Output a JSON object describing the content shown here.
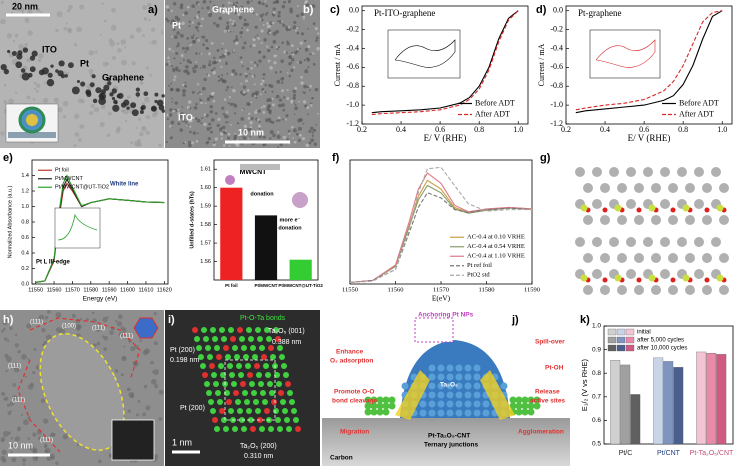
{
  "panels": {
    "a": {
      "label": "a)",
      "scale_bar": "20 nm",
      "annotations": [
        "ITO",
        "Pt",
        "Graphene"
      ]
    },
    "b": {
      "label": "b)",
      "scale_bar": "10 nm",
      "annotations": [
        "Graphene",
        "Pt",
        "ITO"
      ]
    },
    "c": {
      "label": "c)",
      "chart": {
        "type": "line",
        "title": "Pt-ITO-graphene",
        "x_label": "E/ V (RHE)",
        "y_label": "Current / mA",
        "x": [
          0.25,
          0.3,
          0.4,
          0.5,
          0.6,
          0.7,
          0.75,
          0.8,
          0.85,
          0.9,
          0.95,
          1.0
        ],
        "series": [
          {
            "name": "Before ADT",
            "color": "#000000",
            "dash": false,
            "values": [
              -1.08,
              -1.07,
              -1.06,
              -1.05,
              -1.03,
              -0.98,
              -0.92,
              -0.8,
              -0.6,
              -0.3,
              -0.08,
              0
            ]
          },
          {
            "name": "After ADT",
            "color": "#d62728",
            "dash": true,
            "values": [
              -1.1,
              -1.09,
              -1.08,
              -1.07,
              -1.05,
              -1.0,
              -0.94,
              -0.83,
              -0.63,
              -0.33,
              -0.1,
              0
            ]
          }
        ],
        "xlim": [
          0.2,
          1.05
        ],
        "xticks": [
          0.2,
          0.4,
          0.6,
          0.8,
          {
            "value": 1,
            "label": "1.0"
          }
        ],
        "ylim": [
          -1.2,
          0.05
        ],
        "yticks": [
          {
            "value": 0,
            "label": "0.0"
          },
          -0.2,
          -0.4,
          -0.6,
          -0.8,
          {
            "value": -1,
            "label": "-1.0"
          },
          -1.2
        ],
        "legend": "lower right"
      }
    },
    "d": {
      "label": "d)",
      "chart": {
        "type": "line",
        "title": "Pt-graphene",
        "x_label": "E/ V (RHE)",
        "y_label": "Current / mA",
        "x": [
          0.25,
          0.3,
          0.4,
          0.5,
          0.6,
          0.7,
          0.75,
          0.8,
          0.85,
          0.9,
          0.95,
          1.0
        ],
        "series": [
          {
            "name": "Before ADT",
            "color": "#000000",
            "dash": false,
            "values": [
              -1.08,
              -1.06,
              -1.04,
              -1.02,
              -1.0,
              -0.95,
              -0.9,
              -0.78,
              -0.58,
              -0.3,
              -0.06,
              0
            ]
          },
          {
            "name": "After ADT",
            "color": "#d62728",
            "dash": true,
            "values": [
              -1.05,
              -1.03,
              -1.0,
              -0.98,
              -0.94,
              -0.85,
              -0.75,
              -0.58,
              -0.35,
              -0.12,
              -0.02,
              0
            ]
          }
        ],
        "xlim": [
          0.2,
          1.05
        ],
        "xticks": [
          0.2,
          0.4,
          0.6,
          0.8,
          {
            "value": 1,
            "label": "1.0"
          }
        ],
        "ylim": [
          -1.2,
          0.05
        ],
        "yticks": [
          {
            "value": 0,
            "label": "0.0"
          },
          -0.2,
          -0.4,
          -0.6,
          -0.8,
          {
            "value": -1,
            "label": "-1.0"
          },
          -1.2
        ],
        "legend": "lower right"
      }
    },
    "e": {
      "label": "e)",
      "charts": [
        {
          "type": "line",
          "x_label": "Energy (eV)",
          "y_label": "Normalized Absorbance (a.u.)",
          "annotations": [
            "White line",
            "Pt L III-edge"
          ],
          "x": [
            11550,
            11555,
            11560,
            11563,
            11565,
            11567,
            11570,
            11575,
            11580,
            11590,
            11600,
            11610,
            11620
          ],
          "series": [
            {
              "name": "Pt foil",
              "color": "#c0392b",
              "dash": false,
              "values": [
                0.02,
                0.04,
                0.3,
                0.9,
                1.2,
                1.3,
                1.2,
                1.0,
                1.05,
                1.1,
                1.08,
                1.06,
                1.05
              ]
            },
            {
              "name": "Pt/MWCNT",
              "color": "#222222",
              "dash": false,
              "values": [
                0.02,
                0.04,
                0.32,
                0.95,
                1.25,
                1.35,
                1.22,
                1.0,
                1.05,
                1.1,
                1.08,
                1.06,
                1.05
              ]
            },
            {
              "name": "Pt/MWCNT@UT-TiO2",
              "color": "#2ca02c",
              "dash": false,
              "values": [
                0.02,
                0.04,
                0.33,
                0.98,
                1.3,
                1.4,
                1.25,
                1.01,
                1.05,
                1.1,
                1.08,
                1.06,
                1.05
              ]
            }
          ],
          "xlim": [
            11548,
            11622
          ],
          "xticks": [
            11550,
            11560,
            11570,
            11580,
            11590,
            11600,
            11610,
            11620
          ],
          "ylim": [
            0,
            1.6
          ],
          "yticks": [
            {
              "value": 0,
              "label": "0.0"
            },
            0.2,
            0.4,
            0.6,
            0.8,
            {
              "value": 1,
              "label": "1.0"
            },
            1.2,
            1.4
          ],
          "legend": "upper left"
        },
        {
          "type": "bar",
          "y_label": "Unfilled d-states (hTs)",
          "annotations": [
            "MWCNT",
            "donation",
            "more e⁻",
            "donation"
          ],
          "categories": [
            "Pt foil",
            "Pt/MWCNT",
            "Pt/MWCNT@UT-TiO2"
          ],
          "values": [
            1.6,
            1.585,
            1.561
          ],
          "colors": [
            "#ee2222",
            "#111111",
            "#33cc33"
          ],
          "ylim": [
            1.55,
            1.615
          ],
          "yticks": [
            1.56,
            1.57,
            1.58,
            1.59,
            {
              "value": 1.6,
              "label": "1.60"
            },
            1.61
          ]
        }
      ]
    },
    "f": {
      "label": "f)",
      "chart": {
        "type": "line",
        "x_label": "E(eV)",
        "x": [
          11550,
          11555,
          11560,
          11563,
          11565,
          11567,
          11570,
          11573,
          11576,
          11580,
          11585,
          11590
        ],
        "series": [
          {
            "name": "AC-0.4 at 0.10 VRHE",
            "color": "#c8a040",
            "dash": false,
            "values": [
              0.02,
              0.05,
              0.25,
              0.8,
              1.2,
              1.42,
              1.3,
              1.05,
              0.98,
              1.02,
              1.05,
              1.03
            ]
          },
          {
            "name": "AC-0.4 at 0.54 VRHE",
            "color": "#8a9a6a",
            "dash": false,
            "values": [
              0.02,
              0.05,
              0.24,
              0.78,
              1.15,
              1.35,
              1.25,
              1.03,
              0.97,
              1.01,
              1.04,
              1.02
            ]
          },
          {
            "name": "AC-0.4 at 1.10 VRHE",
            "color": "#e07a8a",
            "dash": false,
            "values": [
              0.02,
              0.05,
              0.26,
              0.85,
              1.3,
              1.52,
              1.38,
              1.08,
              0.99,
              1.03,
              1.05,
              1.03
            ]
          },
          {
            "name": "Pt ref foil",
            "color": "#777777",
            "dash": true,
            "values": [
              0.02,
              0.05,
              0.2,
              0.7,
              1.05,
              1.25,
              1.18,
              1.02,
              0.98,
              1.02,
              1.04,
              1.02
            ]
          },
          {
            "name": "PtO2 std",
            "color": "#aaaaaa",
            "dash": true,
            "values": [
              0.02,
              0.04,
              0.2,
              0.75,
              1.25,
              1.58,
              1.6,
              1.35,
              1.1,
              1.0,
              1.02,
              1.02
            ]
          }
        ],
        "xlim": [
          11550,
          11590
        ],
        "xticks": [
          11550,
          11560,
          11570,
          11580,
          11590
        ],
        "ylim": [
          0,
          1.7
        ],
        "legend": "lower right"
      }
    },
    "g": {
      "label": "g)"
    },
    "h": {
      "label": "h)",
      "scale_bar": "10 nm",
      "annotations": [
        "(100)",
        "(111)",
        "(111)",
        "(111)",
        "(111)",
        "(111)",
        "(111)"
      ]
    },
    "i": {
      "label": "i)",
      "scale_bar": "1 nm",
      "annotations": [
        "Pt-O-Ta bonds",
        "Ta₂O₅ (001)",
        "0.388 nm",
        "Pt (200)",
        "0.198 nm",
        "Pt (200)",
        "Ta₂O₅ (200)",
        "0.310 nm"
      ]
    },
    "j": {
      "label": "j)",
      "annotations": [
        "Anchoring Pt NPs",
        "Enhance",
        "O₂ adsorption",
        "Spill-over",
        "Pt-OH",
        "Ta₂O₅",
        "Promote O-O",
        "bond cleavage",
        "Release",
        "active sites",
        "Migration",
        "Agglomeration",
        "Pt-Ta₂O₅-CNT",
        "Ternary junctions",
        "Carbon"
      ]
    },
    "k": {
      "label": "k)",
      "chart": {
        "type": "bar",
        "y_label": "E₁/₂ (V vs RHE)",
        "categories": [
          "Pt/C",
          "Pt/CNT",
          "Pt-Ta₂O₅/CNT"
        ],
        "category_colors": [
          "#222222",
          "#1f3a80",
          "#c0507a"
        ],
        "series": [
          {
            "name": "initial",
            "colors": [
              "#d0d0d0",
              "#c8d4e8",
              "#f2c4d4"
            ],
            "values": [
              0.855,
              0.865,
              0.89
            ]
          },
          {
            "name": "after 5,000 cycles",
            "colors": [
              "#a0a0a0",
              "#7f95c0",
              "#e88aa8"
            ],
            "values": [
              0.835,
              0.85,
              0.885
            ]
          },
          {
            "name": "after 10,000 cycles",
            "colors": [
              "#606060",
              "#4a5f8e",
              "#d05a80"
            ],
            "values": [
              0.71,
              0.825,
              0.88
            ]
          }
        ],
        "ylim": [
          0.5,
          1.0
        ],
        "yticks": [
          0.5,
          0.6,
          0.7,
          0.8,
          0.9,
          {
            "value": 1,
            "label": "1.0"
          }
        ],
        "legend": "upper left"
      }
    }
  }
}
